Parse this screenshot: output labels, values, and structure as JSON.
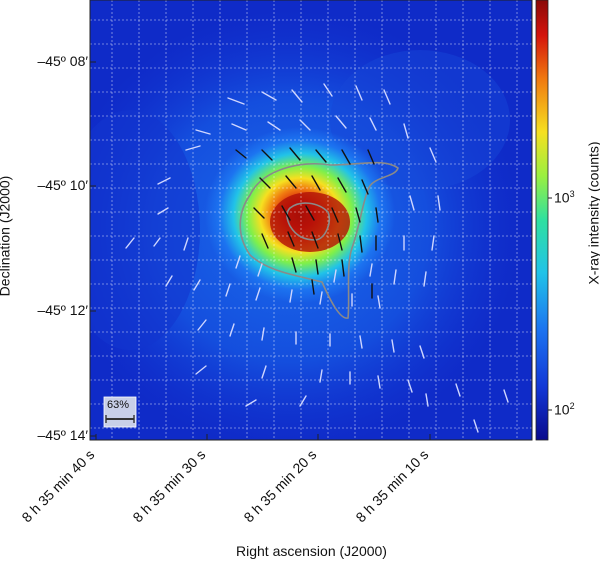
{
  "image": {
    "description_free": true,
    "colormap": [
      "#0a0a8c",
      "#1237d6",
      "#1c73f0",
      "#21c3e8",
      "#2fe0a0",
      "#9af040",
      "#f6e020",
      "#f07a10",
      "#d4140c",
      "#8a0a08"
    ]
  },
  "axes": {
    "xlabel": "Right ascension (J2000)",
    "ylabel": "Declination (J2000)",
    "xticks": [
      "8 h 35 min 40 s",
      "8 h 35 min 30 s",
      "8 h 35 min 20 s",
      "8 h 35 min 10 s"
    ],
    "yticks": [
      "–45º 08′",
      "–45º 10′",
      "–45º 12′",
      "–45º 14′"
    ]
  },
  "colorbar": {
    "label": "X-ray intensity (counts)",
    "ticks": [
      {
        "base": "10",
        "exp": "3"
      },
      {
        "base": "10",
        "exp": "2"
      }
    ],
    "scale": "log"
  },
  "scale_bar": {
    "label": "63%"
  },
  "colors": {
    "grid": "#ffffff",
    "contour": "#8a8a8a",
    "vector_dark": "#111111",
    "vector_light": "#cfd6ff"
  }
}
